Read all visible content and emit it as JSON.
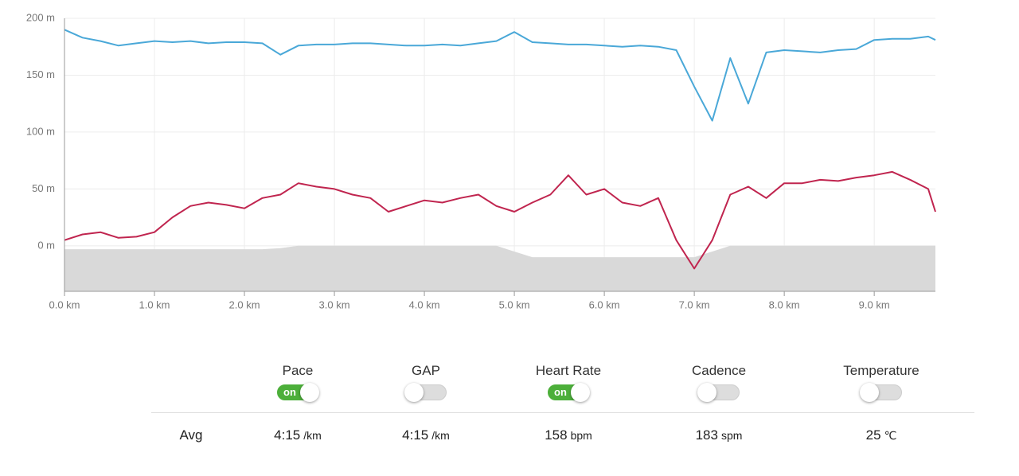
{
  "chart_data": {
    "type": "line",
    "x": [
      0,
      0.2,
      0.4,
      0.6,
      0.8,
      1.0,
      1.2,
      1.4,
      1.6,
      1.8,
      2.0,
      2.2,
      2.4,
      2.6,
      2.8,
      3.0,
      3.2,
      3.4,
      3.6,
      3.8,
      4.0,
      4.2,
      4.4,
      4.6,
      4.8,
      5.0,
      5.2,
      5.4,
      5.6,
      5.8,
      6.0,
      6.2,
      6.4,
      6.6,
      6.8,
      7.0,
      7.2,
      7.4,
      7.6,
      7.8,
      8.0,
      8.2,
      8.4,
      8.6,
      8.8,
      9.0,
      9.2,
      9.4,
      9.6,
      9.68
    ],
    "series": [
      {
        "color": "#d9d9d9",
        "fill": true,
        "values": [
          -3,
          -3,
          -3,
          -3,
          -3,
          -3,
          -3,
          -3,
          -3,
          -3,
          -3,
          -3,
          -2,
          0,
          0,
          0,
          0,
          0,
          0,
          0,
          0,
          0,
          0,
          0,
          0,
          -5,
          -10,
          -10,
          -10,
          -10,
          -10,
          -10,
          -10,
          -10,
          -10,
          -10,
          -5,
          0,
          0,
          0,
          0,
          0,
          0,
          0,
          0,
          0,
          0,
          0,
          0,
          0
        ]
      },
      {
        "color": "#4aa8d8",
        "values": [
          190,
          183,
          180,
          176,
          178,
          180,
          179,
          180,
          178,
          179,
          179,
          178,
          168,
          176,
          177,
          177,
          178,
          178,
          177,
          176,
          176,
          177,
          176,
          178,
          180,
          188,
          179,
          178,
          177,
          177,
          176,
          175,
          176,
          175,
          172,
          140,
          110,
          165,
          125,
          170,
          172,
          171,
          170,
          172,
          173,
          181,
          182,
          182,
          184,
          181
        ]
      },
      {
        "color": "#c0254f",
        "values": [
          5,
          10,
          12,
          7,
          8,
          12,
          25,
          35,
          38,
          36,
          33,
          42,
          45,
          55,
          52,
          50,
          45,
          42,
          30,
          35,
          40,
          38,
          42,
          45,
          35,
          30,
          38,
          45,
          62,
          45,
          50,
          38,
          35,
          42,
          5,
          -20,
          5,
          45,
          52,
          42,
          55,
          55,
          58,
          57,
          60,
          62,
          65,
          58,
          50,
          30
        ]
      }
    ],
    "xlim": [
      0,
      9.68
    ],
    "ylim": [
      -40,
      200
    ],
    "xticks": [
      {
        "value": 0,
        "label": "0.0 km"
      },
      {
        "value": 1,
        "label": "1.0 km"
      },
      {
        "value": 2,
        "label": "2.0 km"
      },
      {
        "value": 3,
        "label": "3.0 km"
      },
      {
        "value": 4,
        "label": "4.0 km"
      },
      {
        "value": 5,
        "label": "5.0 km"
      },
      {
        "value": 6,
        "label": "6.0 km"
      },
      {
        "value": 7,
        "label": "7.0 km"
      },
      {
        "value": 8,
        "label": "8.0 km"
      },
      {
        "value": 9,
        "label": "9.0 km"
      }
    ],
    "yticks": [
      {
        "value": 0,
        "label": "0 m"
      },
      {
        "value": 50,
        "label": "50 m"
      },
      {
        "value": 100,
        "label": "100 m"
      },
      {
        "value": 150,
        "label": "150 m"
      },
      {
        "value": 200,
        "label": "200 m"
      }
    ],
    "grid": true
  },
  "metrics": [
    {
      "label": "Pace",
      "state": "on",
      "avg": "4:15",
      "unit": "/km"
    },
    {
      "label": "GAP",
      "avg": "4:15",
      "unit": "/km"
    },
    {
      "label": "Heart Rate",
      "state": "on",
      "avg": 158,
      "unit": "bpm"
    },
    {
      "label": "Cadence",
      "avg": 183,
      "unit": "spm"
    },
    {
      "label": "Temperature",
      "avg": 25,
      "unit": "℃"
    }
  ],
  "avg_label": "Avg"
}
